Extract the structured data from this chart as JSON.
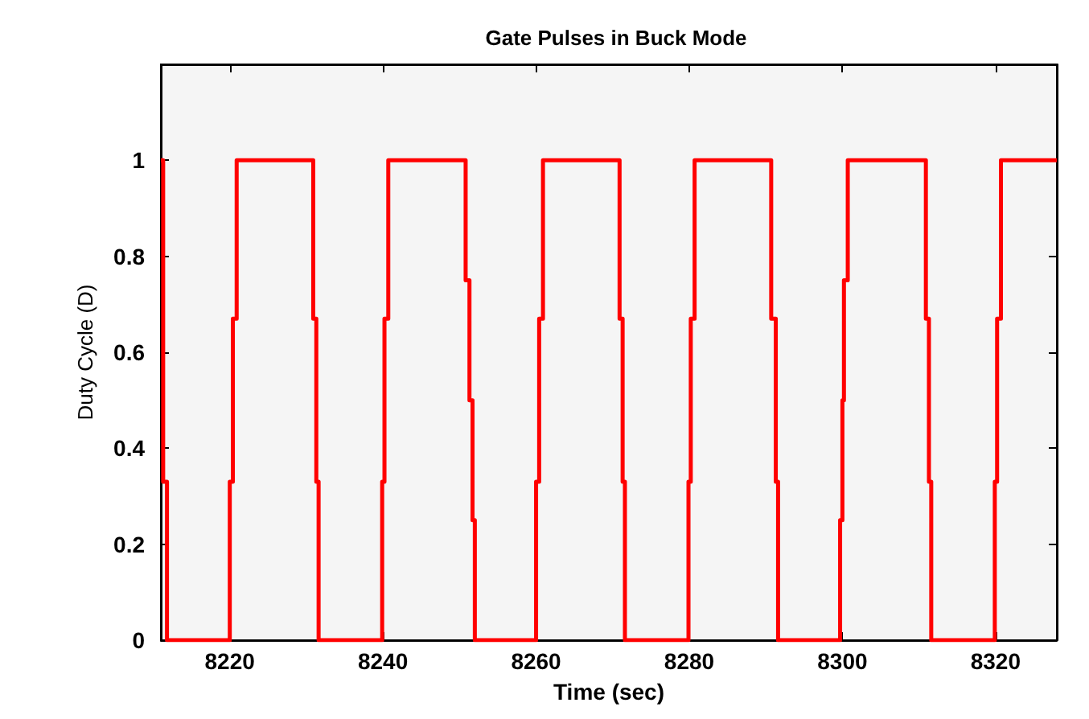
{
  "chart_data": {
    "type": "step",
    "title": "Gate Pulses in Buck Mode",
    "xlabel": "Time (sec)",
    "ylabel": "Duty Cycle (D)",
    "xlim": [
      8211,
      8328
    ],
    "xticks": [
      8220,
      8240,
      8260,
      8280,
      8300,
      8320
    ],
    "ylim": [
      0,
      1.2
    ],
    "yticks": [
      0,
      0.2,
      0.4,
      0.6,
      0.8,
      1
    ],
    "marker": "none",
    "line_style": "solid",
    "series": [
      {
        "color": "#ff0000",
        "x": [
          8211,
          8211.3,
          8211.8,
          8220,
          8220.4,
          8220.9,
          8230.9,
          8231.3,
          8231.6,
          8239.9,
          8240.2,
          8240.7,
          8250.8,
          8251.3,
          8251.7,
          8252,
          8260,
          8260.4,
          8260.9,
          8270.9,
          8271.3,
          8271.6,
          8279.9,
          8280.2,
          8280.7,
          8290.7,
          8291.3,
          8291.6,
          8299.7,
          8300,
          8300.2,
          8300.7,
          8310.9,
          8311.3,
          8311.6,
          8319.9,
          8320.2,
          8320.7,
          8328
        ],
        "values": [
          1,
          0.33,
          0,
          0.33,
          0.67,
          1,
          0.67,
          0.33,
          0,
          0.33,
          0.67,
          1,
          0.75,
          0.5,
          0.25,
          0,
          0.33,
          0.67,
          1,
          0.67,
          0.33,
          0,
          0.33,
          0.67,
          1,
          0.67,
          0.33,
          0,
          0.25,
          0.5,
          0.75,
          1,
          0.67,
          0.33,
          0,
          0.33,
          0.67,
          1,
          1
        ]
      }
    ]
  }
}
